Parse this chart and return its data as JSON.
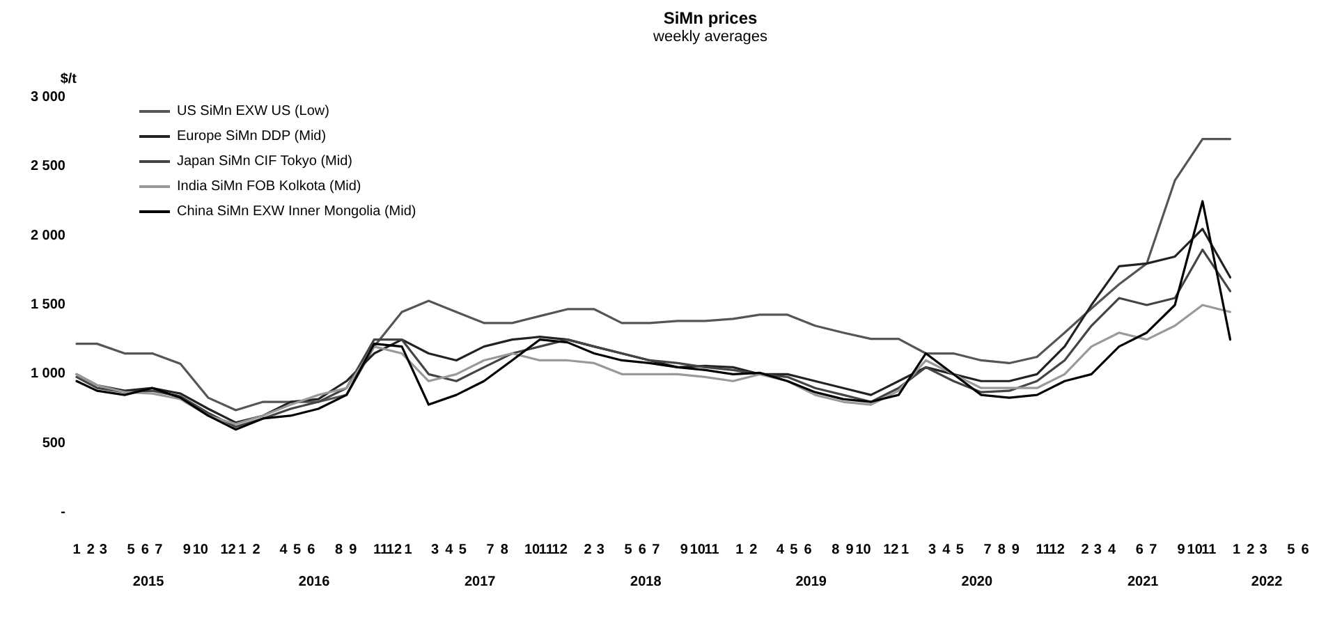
{
  "chart_data": {
    "type": "line",
    "title": "SiMn prices",
    "subtitle": "weekly averages",
    "ylabel": "$/t",
    "legend": "top left",
    "grid": false,
    "marker": "none",
    "line_style": "solid",
    "x": [
      "2015-01-15",
      "2015-03",
      "2015-05",
      "2015-07",
      "2015-09",
      "2015-11",
      "2016-01",
      "2016-03",
      "2016-05",
      "2016-07",
      "2016-09",
      "2016-11",
      "2017-01",
      "2017-03",
      "2017-05",
      "2017-07",
      "2017-09",
      "2017-11",
      "2018-01",
      "2018-03",
      "2018-05",
      "2018-07",
      "2018-09",
      "2018-11",
      "2019-01",
      "2019-03",
      "2019-05",
      "2019-07",
      "2019-09",
      "2019-11",
      "2020-01",
      "2020-03",
      "2020-05",
      "2020-07",
      "2020-09",
      "2020-11",
      "2021-01",
      "2021-03",
      "2021-05",
      "2021-07",
      "2021-09",
      "2021-11",
      "2022-01"
    ],
    "series": [
      {
        "name": "US SiMn EXW US (Low)",
        "color": "#555555",
        "values": [
          1220,
          1220,
          1150,
          1150,
          1075,
          830,
          740,
          800,
          800,
          800,
          850,
          1200,
          1450,
          1530,
          1450,
          1370,
          1370,
          1420,
          1470,
          1470,
          1370,
          1370,
          1385,
          1385,
          1400,
          1430,
          1430,
          1350,
          1300,
          1255,
          1255,
          1150,
          1150,
          1100,
          1080,
          1125,
          1300,
          1475,
          1650,
          1800,
          2400,
          2700,
          2700
        ]
      },
      {
        "name": "Europe SiMn DDP (Mid)",
        "color": "#222222",
        "values": [
          1000,
          920,
          880,
          900,
          860,
          750,
          650,
          700,
          800,
          820,
          950,
          1150,
          1250,
          1150,
          1100,
          1200,
          1250,
          1270,
          1250,
          1200,
          1150,
          1100,
          1050,
          1060,
          1050,
          1000,
          1000,
          950,
          900,
          850,
          950,
          1050,
          1000,
          950,
          950,
          1000,
          1200,
          1500,
          1780,
          1800,
          1850,
          2050,
          1700
        ]
      },
      {
        "name": "Japan SiMn CIF Tokyo (Mid)",
        "color": "#444444",
        "values": [
          980,
          900,
          870,
          880,
          840,
          720,
          620,
          680,
          750,
          800,
          900,
          1250,
          1250,
          1000,
          950,
          1050,
          1150,
          1200,
          1250,
          1200,
          1150,
          1100,
          1080,
          1050,
          1030,
          1000,
          980,
          900,
          850,
          800,
          900,
          1050,
          950,
          870,
          880,
          950,
          1100,
          1350,
          1550,
          1500,
          1550,
          1900,
          1600
        ]
      },
      {
        "name": "India SiMn FOB Kolkota (Mid)",
        "color": "#999999",
        "values": [
          1000,
          920,
          870,
          860,
          820,
          700,
          640,
          700,
          780,
          850,
          900,
          1200,
          1150,
          950,
          1000,
          1100,
          1150,
          1100,
          1100,
          1080,
          1000,
          1000,
          1000,
          980,
          950,
          1000,
          950,
          850,
          800,
          780,
          880,
          1100,
          1000,
          900,
          900,
          900,
          1000,
          1200,
          1300,
          1250,
          1350,
          1500,
          1450
        ]
      },
      {
        "name": "China SiMn EXW Inner Mongolia (Mid)",
        "color": "#000000",
        "values": [
          950,
          880,
          850,
          900,
          830,
          700,
          600,
          680,
          700,
          750,
          850,
          1220,
          1200,
          780,
          850,
          950,
          1100,
          1250,
          1230,
          1150,
          1100,
          1080,
          1050,
          1030,
          1000,
          1010,
          950,
          870,
          820,
          800,
          850,
          1150,
          1000,
          850,
          830,
          850,
          950,
          1000,
          1200,
          1300,
          1500,
          2250,
          1250
        ]
      }
    ],
    "ylim": [
      0,
      3000
    ],
    "yticks": [
      {
        "value": 0,
        "label": "-"
      },
      {
        "value": 500,
        "label": "500"
      },
      {
        "value": 1000,
        "label": "1 000"
      },
      {
        "value": 1500,
        "label": "1 500"
      },
      {
        "value": 2000,
        "label": "2 000"
      },
      {
        "value": 2500,
        "label": "2 500"
      },
      {
        "value": 3000,
        "label": "3 000"
      }
    ],
    "xlim": [
      "2015-01-15",
      "2022-06-15"
    ],
    "xticks": [
      {
        "value": "2015-01-15",
        "label": "1"
      },
      {
        "value": "2015-02-15",
        "label": "2"
      },
      {
        "value": "2015-03-15",
        "label": "3"
      },
      {
        "value": "2015-05-15",
        "label": "5"
      },
      {
        "value": "2015-06-15",
        "label": "6"
      },
      {
        "value": "2015-07-15",
        "label": "7"
      },
      {
        "value": "2015-09-15",
        "label": "9"
      },
      {
        "value": "2015-10-15",
        "label": "10"
      },
      {
        "value": "2015-12-15",
        "label": "12"
      },
      {
        "value": "2016-01-15",
        "label": "1"
      },
      {
        "value": "2016-02-15",
        "label": "2"
      },
      {
        "value": "2016-04-15",
        "label": "4"
      },
      {
        "value": "2016-05-15",
        "label": "5"
      },
      {
        "value": "2016-06-15",
        "label": "6"
      },
      {
        "value": "2016-08-15",
        "label": "8"
      },
      {
        "value": "2016-09-15",
        "label": "9"
      },
      {
        "value": "2016-11-15",
        "label": "11"
      },
      {
        "value": "2016-12-15",
        "label": "12"
      },
      {
        "value": "2017-01-15",
        "label": "1"
      },
      {
        "value": "2017-03-15",
        "label": "3"
      },
      {
        "value": "2017-04-15",
        "label": "4"
      },
      {
        "value": "2017-05-15",
        "label": "5"
      },
      {
        "value": "2017-07-15",
        "label": "7"
      },
      {
        "value": "2017-08-15",
        "label": "8"
      },
      {
        "value": "2017-10-15",
        "label": "10"
      },
      {
        "value": "2017-11-15",
        "label": "11"
      },
      {
        "value": "2017-12-15",
        "label": "12"
      },
      {
        "value": "2018-02-15",
        "label": "2"
      },
      {
        "value": "2018-03-15",
        "label": "3"
      },
      {
        "value": "2018-05-15",
        "label": "5"
      },
      {
        "value": "2018-06-15",
        "label": "6"
      },
      {
        "value": "2018-07-15",
        "label": "7"
      },
      {
        "value": "2018-09-15",
        "label": "9"
      },
      {
        "value": "2018-10-15",
        "label": "10"
      },
      {
        "value": "2018-11-15",
        "label": "11"
      },
      {
        "value": "2019-01-15",
        "label": "1"
      },
      {
        "value": "2019-02-15",
        "label": "2"
      },
      {
        "value": "2019-04-15",
        "label": "4"
      },
      {
        "value": "2019-05-15",
        "label": "5"
      },
      {
        "value": "2019-06-15",
        "label": "6"
      },
      {
        "value": "2019-08-15",
        "label": "8"
      },
      {
        "value": "2019-09-15",
        "label": "9"
      },
      {
        "value": "2019-10-15",
        "label": "10"
      },
      {
        "value": "2019-12-15",
        "label": "12"
      },
      {
        "value": "2020-01-15",
        "label": "1"
      },
      {
        "value": "2020-03-15",
        "label": "3"
      },
      {
        "value": "2020-04-15",
        "label": "4"
      },
      {
        "value": "2020-05-15",
        "label": "5"
      },
      {
        "value": "2020-07-15",
        "label": "7"
      },
      {
        "value": "2020-08-15",
        "label": "8"
      },
      {
        "value": "2020-09-15",
        "label": "9"
      },
      {
        "value": "2020-11-15",
        "label": "11"
      },
      {
        "value": "2020-12-15",
        "label": "12"
      },
      {
        "value": "2021-02-15",
        "label": "2"
      },
      {
        "value": "2021-03-15",
        "label": "3"
      },
      {
        "value": "2021-04-15",
        "label": "4"
      },
      {
        "value": "2021-06-15",
        "label": "6"
      },
      {
        "value": "2021-07-15",
        "label": "7"
      },
      {
        "value": "2021-09-15",
        "label": "9"
      },
      {
        "value": "2021-10-15",
        "label": "10"
      },
      {
        "value": "2021-11-15",
        "label": "11"
      },
      {
        "value": "2022-01-15",
        "label": "1"
      },
      {
        "value": "2022-02-15",
        "label": "2"
      },
      {
        "value": "2022-03-15",
        "label": "3"
      },
      {
        "value": "2022-05-15",
        "label": "5"
      },
      {
        "value": "2022-06-15",
        "label": "6"
      }
    ],
    "annotations": [
      "2015",
      "2016",
      "2017",
      "2018",
      "2019",
      "2020",
      "2021",
      "2022"
    ]
  }
}
